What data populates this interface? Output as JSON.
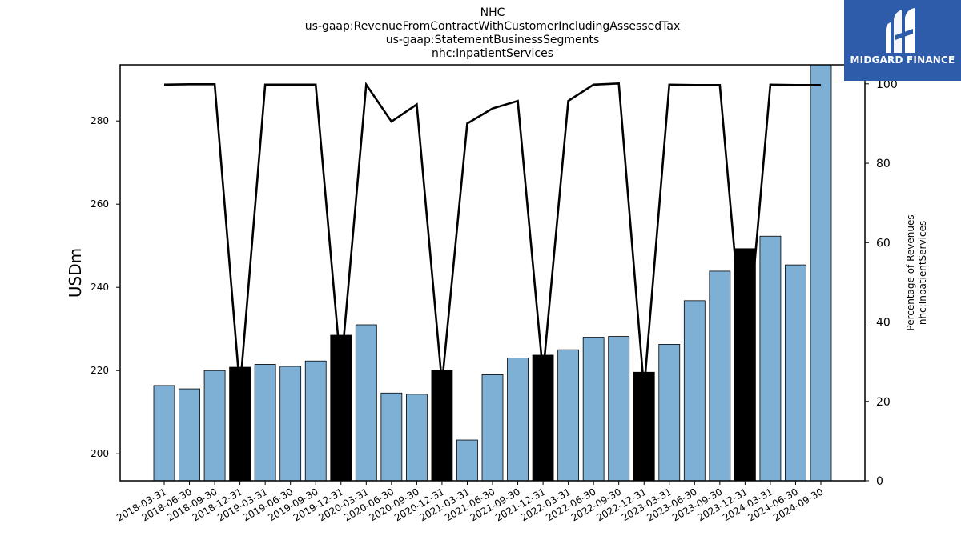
{
  "chart_data": {
    "type": "bar",
    "title_lines": [
      "NHC",
      "us-gaap:RevenueFromContractWithCustomerIncludingAssessedTax",
      "us-gaap:StatementBusinessSegments",
      "nhc:InpatientServices"
    ],
    "ylabel": "USDm",
    "ylabel_right_lines": [
      "Percentage of Revenues",
      "nhc:InpatientServices"
    ],
    "categories": [
      "2018-03-31",
      "2018-06-30",
      "2018-09-30",
      "2018-12-31",
      "2019-03-31",
      "2019-06-30",
      "2019-09-30",
      "2019-12-31",
      "2020-03-31",
      "2020-06-30",
      "2020-09-30",
      "2020-12-31",
      "2021-03-31",
      "2021-06-30",
      "2021-09-30",
      "2021-12-31",
      "2022-03-31",
      "2022-06-30",
      "2022-09-30",
      "2022-12-31",
      "2023-03-31",
      "2023-06-30",
      "2023-09-30",
      "2023-12-31",
      "2024-03-31",
      "2024-06-30",
      "2024-09-30"
    ],
    "series": [
      {
        "type": "bar",
        "values": [
          216.4,
          215.6,
          220.0,
          220.8,
          221.5,
          221.0,
          222.3,
          228.5,
          231.0,
          214.6,
          214.3,
          220.0,
          203.3,
          219.0,
          223.0,
          223.7,
          225.0,
          228.0,
          228.2,
          219.6,
          226.3,
          236.8,
          243.9,
          249.3,
          252.3,
          245.4,
          293.5
        ],
        "annual_quarters": [
          "2018-12-31",
          "2019-12-31",
          "2020-12-31",
          "2021-12-31",
          "2022-12-31",
          "2023-12-31"
        ]
      },
      {
        "type": "line",
        "axis": "right",
        "values": [
          99.8,
          99.9,
          99.9,
          23.0,
          99.8,
          99.8,
          99.8,
          28.0,
          99.8,
          90.5,
          94.8,
          24.5,
          90.0,
          93.8,
          95.7,
          27.0,
          95.7,
          99.8,
          100.1,
          23.0,
          99.8,
          99.7,
          99.7,
          27.5,
          99.8,
          99.7,
          99.7
        ]
      }
    ],
    "ylim": [
      193.5,
      293.5
    ],
    "ylim_right": [
      0,
      104.8
    ],
    "yticks": [
      200,
      220,
      240,
      260,
      280
    ],
    "yticks_right": [
      0,
      20,
      40,
      60,
      80,
      100
    ],
    "colors": {
      "bar": "#7eb0d5",
      "bar_annual": "#000000",
      "line": "#000000"
    },
    "grid": false
  },
  "logo": {
    "text": "MIDGARD FINANCE",
    "icon": "midgard-logo-icon"
  }
}
